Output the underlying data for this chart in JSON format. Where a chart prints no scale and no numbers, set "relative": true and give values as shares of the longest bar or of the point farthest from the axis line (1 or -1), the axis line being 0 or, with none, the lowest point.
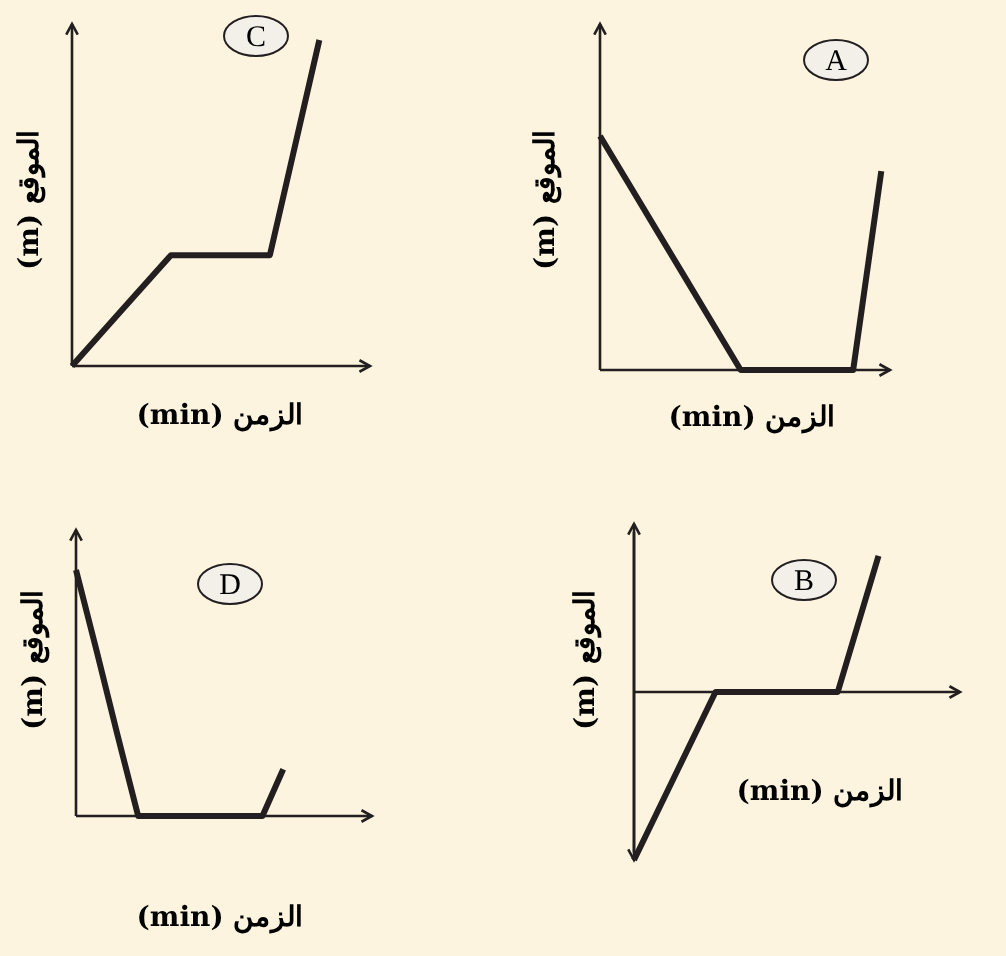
{
  "chart_data": [
    {
      "type": "line",
      "title": "C",
      "xlabel": "الزمن (min)",
      "ylabel": "الموقع (m)",
      "relative": true,
      "categories": [
        null,
        null,
        null,
        null,
        null,
        null
      ],
      "series": [
        {
          "color": "#231f20",
          "values": [
            0,
            0.17,
            0.34,
            0.34,
            0.34,
            1
          ]
        }
      ]
    },
    {
      "type": "line",
      "title": "A",
      "xlabel": "الزمن (min)",
      "ylabel": "الموقع (m)",
      "relative": true,
      "categories": [
        null,
        null,
        null,
        null,
        null,
        null,
        null,
        null,
        null,
        null,
        null
      ],
      "series": [
        {
          "color": "#231f20",
          "values": [
            1,
            0.8,
            0.6,
            0.4,
            0.2,
            0,
            0,
            0,
            0,
            0,
            0.85
          ]
        }
      ]
    },
    {
      "type": "line",
      "title": "D",
      "xlabel": "الزمن (min)",
      "ylabel": "الموقع (m)",
      "relative": true,
      "categories": [
        null,
        null,
        null,
        null,
        null,
        null,
        null,
        null,
        null,
        null,
        null
      ],
      "series": [
        {
          "color": "#231f20",
          "values": [
            1,
            0.67,
            0.33,
            0,
            0,
            0,
            0,
            0,
            0,
            0,
            0.19
          ]
        }
      ]
    },
    {
      "type": "line",
      "title": "B",
      "xlabel": "الزمن (min)",
      "ylabel": "الموقع (m)",
      "relative": true,
      "categories": [
        null,
        null,
        null,
        null,
        null,
        null,
        null
      ],
      "series": [
        {
          "color": "#231f20",
          "values": [
            -1,
            -0.5,
            0,
            0,
            0,
            0,
            0.81
          ]
        }
      ]
    }
  ]
}
